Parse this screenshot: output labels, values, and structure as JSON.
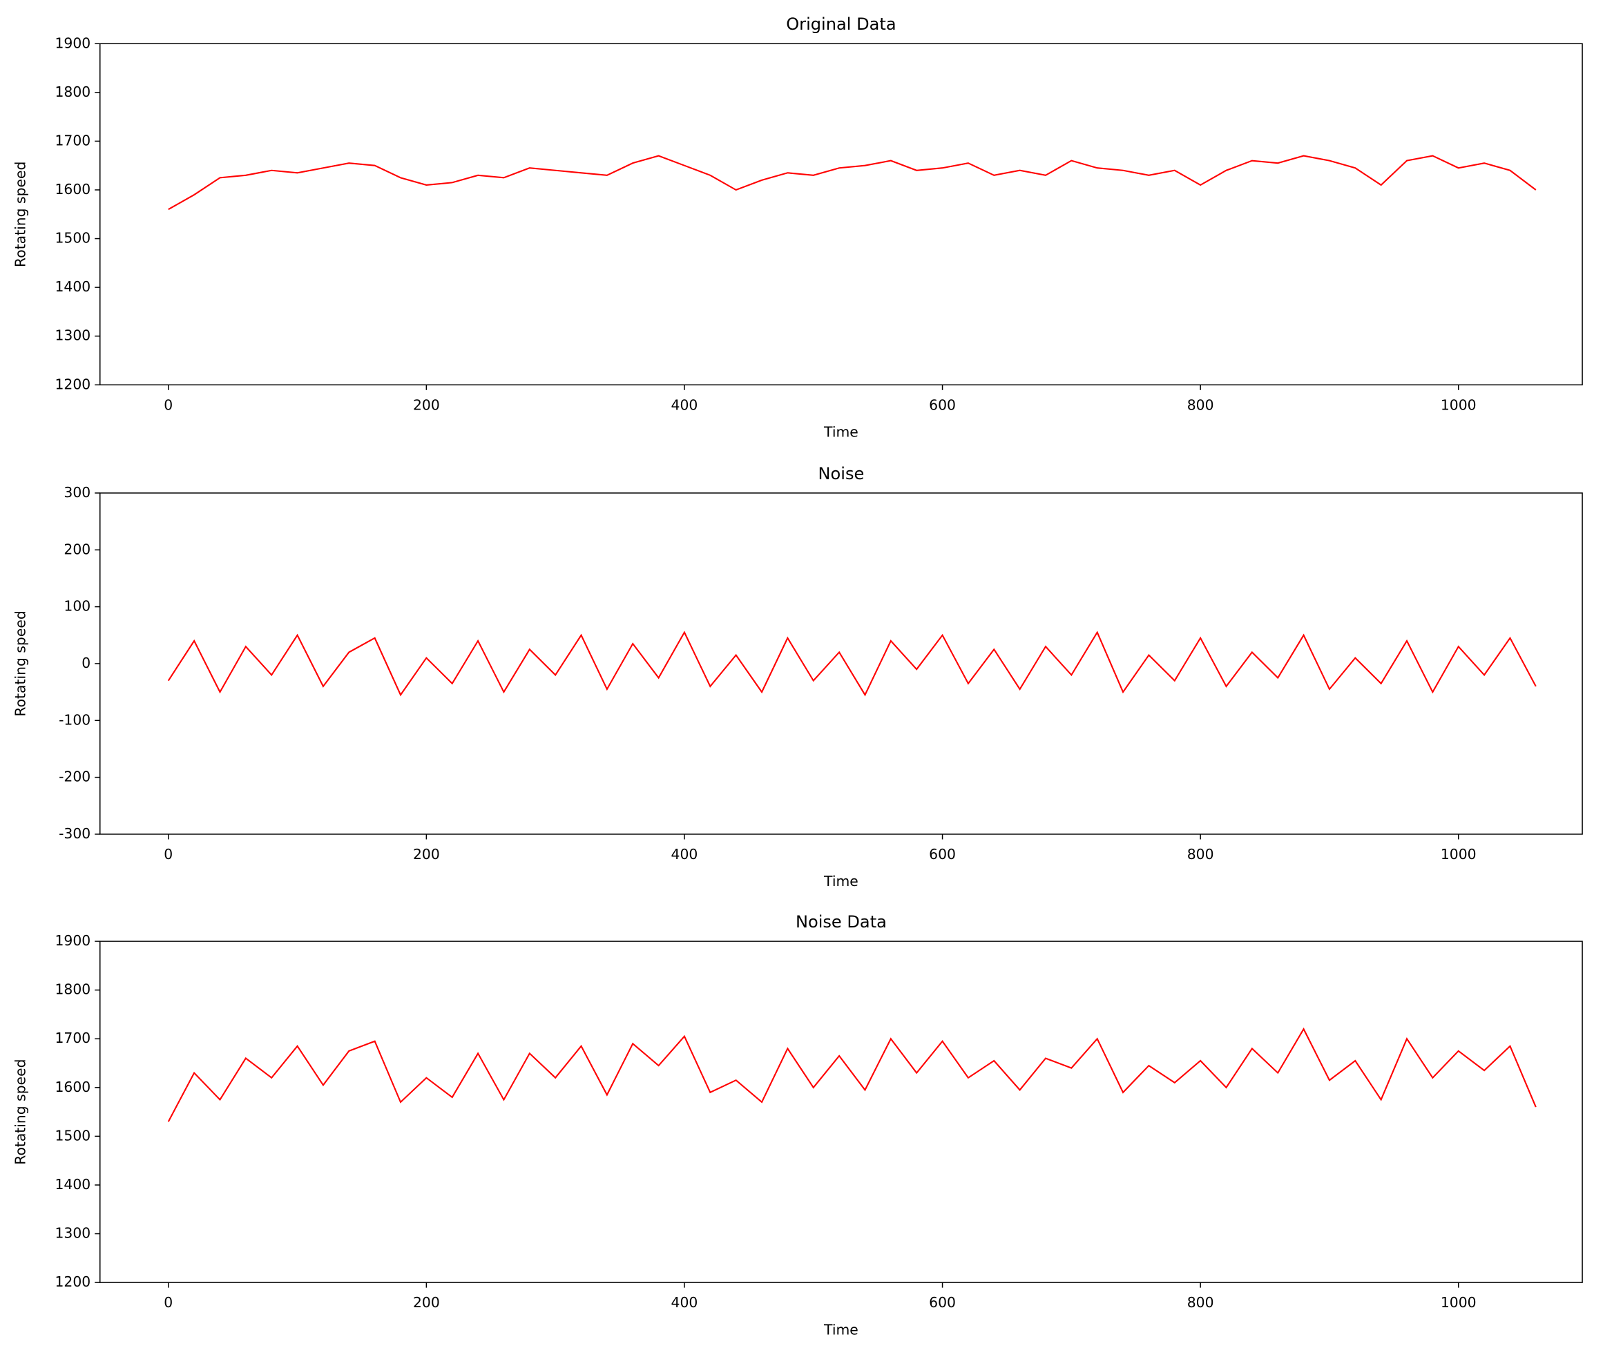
{
  "chart_data": [
    {
      "type": "line",
      "title": "Original Data",
      "xlabel": "Time",
      "ylabel": "Rotating speed",
      "color": "#ff0000",
      "x": [
        0,
        20,
        40,
        60,
        80,
        100,
        120,
        140,
        160,
        180,
        200,
        220,
        240,
        260,
        280,
        300,
        320,
        340,
        360,
        380,
        400,
        420,
        440,
        460,
        480,
        500,
        520,
        540,
        560,
        580,
        600,
        620,
        640,
        660,
        680,
        700,
        720,
        740,
        760,
        780,
        800,
        820,
        840,
        860,
        880,
        900,
        920,
        940,
        960,
        980,
        1000,
        1020,
        1040,
        1060
      ],
      "values": [
        1560,
        1590,
        1625,
        1630,
        1640,
        1635,
        1645,
        1655,
        1650,
        1625,
        1610,
        1615,
        1630,
        1625,
        1645,
        1640,
        1635,
        1630,
        1655,
        1670,
        1650,
        1630,
        1600,
        1620,
        1635,
        1630,
        1645,
        1650,
        1660,
        1640,
        1645,
        1655,
        1630,
        1640,
        1630,
        1660,
        1645,
        1640,
        1630,
        1640,
        1610,
        1640,
        1660,
        1655,
        1670,
        1660,
        1645,
        1610,
        1660,
        1670,
        1645,
        1655,
        1640,
        1600
      ],
      "xlim": [
        -53,
        1096
      ],
      "ylim": [
        1200,
        1900
      ],
      "xticks": [
        0,
        200,
        400,
        600,
        800,
        1000
      ],
      "yticks": [
        1200,
        1300,
        1400,
        1500,
        1600,
        1700,
        1800,
        1900
      ]
    },
    {
      "type": "line",
      "title": "Noise",
      "xlabel": "Time",
      "ylabel": "Rotating speed",
      "color": "#ff0000",
      "x": [
        0,
        20,
        40,
        60,
        80,
        100,
        120,
        140,
        160,
        180,
        200,
        220,
        240,
        260,
        280,
        300,
        320,
        340,
        360,
        380,
        400,
        420,
        440,
        460,
        480,
        500,
        520,
        540,
        560,
        580,
        600,
        620,
        640,
        660,
        680,
        700,
        720,
        740,
        760,
        780,
        800,
        820,
        840,
        860,
        880,
        900,
        920,
        940,
        960,
        980,
        1000,
        1020,
        1040,
        1060
      ],
      "values": [
        -30,
        40,
        -50,
        30,
        -20,
        50,
        -40,
        20,
        45,
        -55,
        10,
        -35,
        40,
        -50,
        25,
        -20,
        50,
        -45,
        35,
        -25,
        55,
        -40,
        15,
        -50,
        45,
        -30,
        20,
        -55,
        40,
        -10,
        50,
        -35,
        25,
        -45,
        30,
        -20,
        55,
        -50,
        15,
        -30,
        45,
        -40,
        20,
        -25,
        50,
        -45,
        10,
        -35,
        40,
        -50,
        30,
        -20,
        45,
        -40
      ],
      "xlim": [
        -53,
        1096
      ],
      "ylim": [
        -300,
        300
      ],
      "xticks": [
        0,
        200,
        400,
        600,
        800,
        1000
      ],
      "yticks": [
        -300,
        -200,
        -100,
        0,
        100,
        200,
        300
      ]
    },
    {
      "type": "line",
      "title": "Noise Data",
      "xlabel": "Time",
      "ylabel": "Rotating speed",
      "color": "#ff0000",
      "x": [
        0,
        20,
        40,
        60,
        80,
        100,
        120,
        140,
        160,
        180,
        200,
        220,
        240,
        260,
        280,
        300,
        320,
        340,
        360,
        380,
        400,
        420,
        440,
        460,
        480,
        500,
        520,
        540,
        560,
        580,
        600,
        620,
        640,
        660,
        680,
        700,
        720,
        740,
        760,
        780,
        800,
        820,
        840,
        860,
        880,
        900,
        920,
        940,
        960,
        980,
        1000,
        1020,
        1040,
        1060
      ],
      "values": [
        1530,
        1630,
        1575,
        1660,
        1620,
        1685,
        1605,
        1675,
        1695,
        1570,
        1620,
        1580,
        1670,
        1575,
        1670,
        1620,
        1685,
        1585,
        1690,
        1645,
        1705,
        1590,
        1615,
        1570,
        1680,
        1600,
        1665,
        1595,
        1700,
        1630,
        1695,
        1620,
        1655,
        1595,
        1660,
        1640,
        1700,
        1590,
        1645,
        1610,
        1655,
        1600,
        1680,
        1630,
        1720,
        1615,
        1655,
        1575,
        1700,
        1620,
        1675,
        1635,
        1685,
        1560
      ],
      "xlim": [
        -53,
        1096
      ],
      "ylim": [
        1200,
        1900
      ],
      "xticks": [
        0,
        200,
        400,
        600,
        800,
        1000
      ],
      "yticks": [
        1200,
        1300,
        1400,
        1500,
        1600,
        1700,
        1800,
        1900
      ]
    }
  ]
}
